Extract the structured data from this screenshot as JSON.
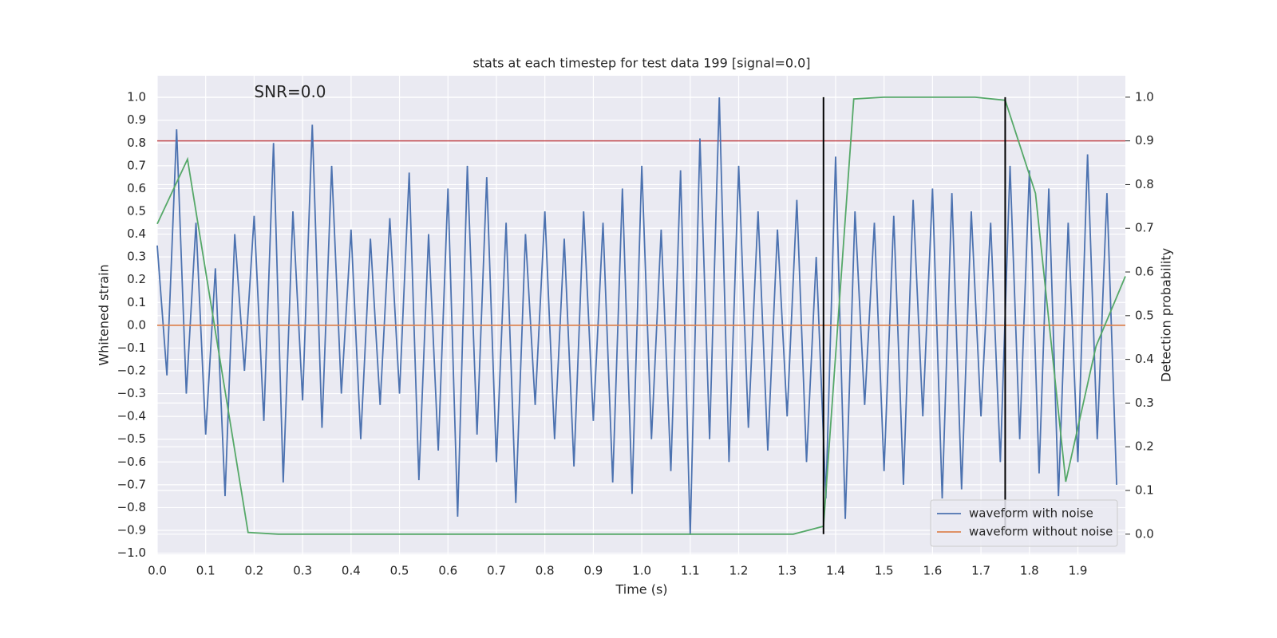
{
  "chart_data": {
    "type": "line",
    "title": "stats at each timestep for test data 199 [signal=0.0]",
    "x_label": "Time (s)",
    "y_label": "Whitened strain",
    "y2_label": "Detection probability",
    "annotation": {
      "text": "SNR=0.0",
      "x": 0.2,
      "y": 1.02
    },
    "xlim": [
      0,
      1.998
    ],
    "ylim": [
      -1.005,
      1.095
    ],
    "y2lim": [
      -0.046,
      1.049
    ],
    "grid": true,
    "legend": "lower right",
    "xticks": [
      {
        "value": 0,
        "label": "0.0"
      },
      {
        "value": 0.1,
        "label": "0.1"
      },
      {
        "value": 0.2,
        "label": "0.2"
      },
      {
        "value": 0.3,
        "label": "0.3"
      },
      {
        "value": 0.4,
        "label": "0.4"
      },
      {
        "value": 0.5,
        "label": "0.5"
      },
      {
        "value": 0.6,
        "label": "0.6"
      },
      {
        "value": 0.7,
        "label": "0.7"
      },
      {
        "value": 0.8,
        "label": "0.8"
      },
      {
        "value": 0.9,
        "label": "0.9"
      },
      {
        "value": 1,
        "label": "1.0"
      },
      {
        "value": 1.1,
        "label": "1.1"
      },
      {
        "value": 1.2,
        "label": "1.2"
      },
      {
        "value": 1.3,
        "label": "1.3"
      },
      {
        "value": 1.4,
        "label": "1.4"
      },
      {
        "value": 1.5,
        "label": "1.5"
      },
      {
        "value": 1.6,
        "label": "1.6"
      },
      {
        "value": 1.7,
        "label": "1.7"
      },
      {
        "value": 1.8,
        "label": "1.8"
      },
      {
        "value": 1.9,
        "label": "1.9"
      }
    ],
    "yticks": [
      {
        "value": -1,
        "label": "−1.0"
      },
      {
        "value": -0.9,
        "label": "−0.9"
      },
      {
        "value": -0.8,
        "label": "−0.8"
      },
      {
        "value": -0.7,
        "label": "−0.7"
      },
      {
        "value": -0.6,
        "label": "−0.6"
      },
      {
        "value": -0.5,
        "label": "−0.5"
      },
      {
        "value": -0.4,
        "label": "−0.4"
      },
      {
        "value": -0.3,
        "label": "−0.3"
      },
      {
        "value": -0.2,
        "label": "−0.2"
      },
      {
        "value": -0.1,
        "label": "−0.1"
      },
      {
        "value": 0,
        "label": "0.0"
      },
      {
        "value": 0.1,
        "label": "0.1"
      },
      {
        "value": 0.2,
        "label": "0.2"
      },
      {
        "value": 0.3,
        "label": "0.3"
      },
      {
        "value": 0.4,
        "label": "0.4"
      },
      {
        "value": 0.5,
        "label": "0.5"
      },
      {
        "value": 0.6,
        "label": "0.6"
      },
      {
        "value": 0.7,
        "label": "0.7"
      },
      {
        "value": 0.8,
        "label": "0.8"
      },
      {
        "value": 0.9,
        "label": "0.9"
      },
      {
        "value": 1,
        "label": "1.0"
      }
    ],
    "y2ticks": [
      {
        "value": 0,
        "label": "0.0"
      },
      {
        "value": 0.1,
        "label": "0.1"
      },
      {
        "value": 0.2,
        "label": "0.2"
      },
      {
        "value": 0.3,
        "label": "0.3"
      },
      {
        "value": 0.4,
        "label": "0.4"
      },
      {
        "value": 0.5,
        "label": "0.5"
      },
      {
        "value": 0.6,
        "label": "0.6"
      },
      {
        "value": 0.7,
        "label": "0.7"
      },
      {
        "value": 0.8,
        "label": "0.8"
      },
      {
        "value": 0.9,
        "label": "0.9"
      },
      {
        "value": 1,
        "label": "1.0"
      }
    ],
    "series": [
      {
        "name": "waveform with noise",
        "color": "#4c72b0",
        "x": [
          0,
          0.02,
          0.04,
          0.06,
          0.08,
          0.1,
          0.12,
          0.14,
          0.16,
          0.18,
          0.2,
          0.22,
          0.24,
          0.26,
          0.28,
          0.3,
          0.32,
          0.34,
          0.36,
          0.38,
          0.4,
          0.42,
          0.44,
          0.46,
          0.48,
          0.5,
          0.52,
          0.54,
          0.56,
          0.58,
          0.6,
          0.62,
          0.64,
          0.66,
          0.68,
          0.7,
          0.72,
          0.74,
          0.76,
          0.78,
          0.8,
          0.82,
          0.84,
          0.86,
          0.88,
          0.9,
          0.92,
          0.94,
          0.96,
          0.98,
          1,
          1.02,
          1.04,
          1.06,
          1.08,
          1.1,
          1.12,
          1.14,
          1.16,
          1.18,
          1.2,
          1.22,
          1.24,
          1.26,
          1.28,
          1.3,
          1.32,
          1.34,
          1.36,
          1.38,
          1.4,
          1.42,
          1.44,
          1.46,
          1.48,
          1.5,
          1.52,
          1.54,
          1.56,
          1.58,
          1.6,
          1.62,
          1.64,
          1.66,
          1.68,
          1.7,
          1.72,
          1.74,
          1.76,
          1.78,
          1.8,
          1.82,
          1.84,
          1.86,
          1.88,
          1.9,
          1.92,
          1.94,
          1.96,
          1.98
        ],
        "values": [
          0.35,
          -0.22,
          0.86,
          -0.3,
          0.45,
          -0.48,
          0.25,
          -0.75,
          0.4,
          -0.2,
          0.48,
          -0.42,
          0.8,
          -0.69,
          0.5,
          -0.33,
          0.88,
          -0.45,
          0.7,
          -0.3,
          0.42,
          -0.5,
          0.38,
          -0.35,
          0.47,
          -0.3,
          0.67,
          -0.68,
          0.4,
          -0.55,
          0.6,
          -0.84,
          0.7,
          -0.48,
          0.65,
          -0.6,
          0.45,
          -0.78,
          0.4,
          -0.35,
          0.5,
          -0.5,
          0.38,
          -0.62,
          0.5,
          -0.42,
          0.45,
          -0.69,
          0.6,
          -0.74,
          0.7,
          -0.5,
          0.42,
          -0.64,
          0.68,
          -0.92,
          0.82,
          -0.5,
          1.0,
          -0.6,
          0.7,
          -0.45,
          0.5,
          -0.55,
          0.42,
          -0.4,
          0.55,
          -0.6,
          0.3,
          -0.76,
          0.74,
          -0.85,
          0.5,
          -0.35,
          0.45,
          -0.64,
          0.48,
          -0.7,
          0.55,
          -0.4,
          0.6,
          -0.76,
          0.58,
          -0.72,
          0.5,
          -0.4,
          0.45,
          -0.6,
          0.7,
          -0.5,
          0.68,
          -0.65,
          0.6,
          -0.75,
          0.45,
          -0.6,
          0.75,
          -0.5,
          0.58,
          -0.7
        ]
      },
      {
        "name": "waveform without noise",
        "color": "#dd8452",
        "x": [
          0,
          1.998
        ],
        "values": [
          0,
          0
        ]
      },
      {
        "color": "#55a868",
        "axis": "y2",
        "x": [
          0,
          0.0625,
          0.125,
          0.1875,
          0.25,
          0.3125,
          0.375,
          0.4375,
          0.5,
          0.5625,
          0.625,
          0.6875,
          0.75,
          0.8125,
          0.875,
          0.9375,
          1,
          1.0625,
          1.125,
          1.1875,
          1.25,
          1.3125,
          1.375,
          1.4375,
          1.5,
          1.5625,
          1.625,
          1.6875,
          1.75,
          1.8125,
          1.875,
          1.9375,
          1.998
        ],
        "values": [
          0.71,
          0.858,
          0.43,
          0.004,
          0,
          0,
          0,
          0,
          0,
          0,
          0,
          0,
          0,
          0,
          0,
          0,
          0,
          0,
          0,
          0,
          0,
          0,
          0.018,
          0.996,
          1,
          1,
          1,
          1,
          0.993,
          0.78,
          0.12,
          0.43,
          0.59
        ]
      }
    ],
    "hlines": [
      {
        "y2": 0.9,
        "color": "#c44e52"
      }
    ],
    "vlines": [
      {
        "x": 1.375,
        "y2min": 0,
        "y2max": 1,
        "color": "#000000"
      },
      {
        "x": 1.75,
        "y2min": 0,
        "y2max": 1,
        "color": "#000000"
      }
    ]
  }
}
